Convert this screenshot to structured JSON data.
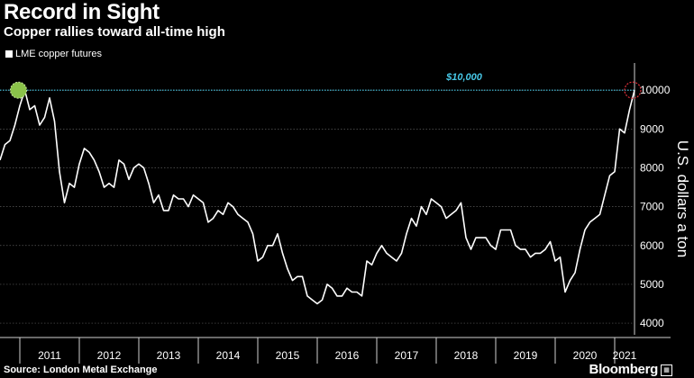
{
  "header": {
    "title": "Record in Sight",
    "subtitle": "Copper rallies toward all-time high"
  },
  "legend": {
    "label": "LME copper futures"
  },
  "footer": {
    "source": "Source: London Metal Exchange",
    "brand": "Bloomberg"
  },
  "colors": {
    "background": "#000000",
    "line": "#ffffff",
    "reference": "#47c7e6",
    "start_marker": "#8bc34a",
    "end_marker": "#e0303a",
    "grid": "#5a5a5a"
  },
  "chart_data": {
    "type": "line",
    "title": "Record in Sight",
    "subtitle": "Copper rallies toward all-time high",
    "xlabel": "",
    "ylabel": "U.S. dollars a ton",
    "ylim": [
      3700,
      10700
    ],
    "y_ticks": [
      4000,
      5000,
      6000,
      7000,
      8000,
      9000,
      10000
    ],
    "x_ticks": [
      "2011",
      "2012",
      "2013",
      "2014",
      "2015",
      "2016",
      "2017",
      "2018",
      "2019",
      "2020",
      "2021"
    ],
    "xlim": [
      "2010-09",
      "2021-05"
    ],
    "grid": "horizontal dotted",
    "legend_position": "top-left",
    "reference_line": {
      "value": 10000,
      "label": "$10,000"
    },
    "series": [
      {
        "name": "LME copper futures",
        "points": [
          [
            "2010-09",
            8200
          ],
          [
            "2010-10",
            8600
          ],
          [
            "2010-11",
            8700
          ],
          [
            "2010-12",
            9100
          ],
          [
            "2011-01",
            9600
          ],
          [
            "2011-02",
            10000
          ],
          [
            "2011-03",
            9500
          ],
          [
            "2011-04",
            9600
          ],
          [
            "2011-05",
            9100
          ],
          [
            "2011-06",
            9300
          ],
          [
            "2011-07",
            9800
          ],
          [
            "2011-08",
            9200
          ],
          [
            "2011-09",
            7900
          ],
          [
            "2011-10",
            7100
          ],
          [
            "2011-11",
            7600
          ],
          [
            "2011-12",
            7500
          ],
          [
            "2012-01",
            8100
          ],
          [
            "2012-02",
            8500
          ],
          [
            "2012-03",
            8400
          ],
          [
            "2012-04",
            8200
          ],
          [
            "2012-05",
            7900
          ],
          [
            "2012-06",
            7500
          ],
          [
            "2012-07",
            7600
          ],
          [
            "2012-08",
            7500
          ],
          [
            "2012-09",
            8200
          ],
          [
            "2012-10",
            8100
          ],
          [
            "2012-11",
            7700
          ],
          [
            "2012-12",
            8000
          ],
          [
            "2013-01",
            8100
          ],
          [
            "2013-02",
            8000
          ],
          [
            "2013-03",
            7600
          ],
          [
            "2013-04",
            7100
          ],
          [
            "2013-05",
            7300
          ],
          [
            "2013-06",
            6900
          ],
          [
            "2013-07",
            6900
          ],
          [
            "2013-08",
            7300
          ],
          [
            "2013-09",
            7200
          ],
          [
            "2013-10",
            7200
          ],
          [
            "2013-11",
            7000
          ],
          [
            "2013-12",
            7300
          ],
          [
            "2014-01",
            7200
          ],
          [
            "2014-02",
            7100
          ],
          [
            "2014-03",
            6600
          ],
          [
            "2014-04",
            6700
          ],
          [
            "2014-05",
            6900
          ],
          [
            "2014-06",
            6800
          ],
          [
            "2014-07",
            7100
          ],
          [
            "2014-08",
            7000
          ],
          [
            "2014-09",
            6800
          ],
          [
            "2014-10",
            6700
          ],
          [
            "2014-11",
            6600
          ],
          [
            "2014-12",
            6300
          ],
          [
            "2015-01",
            5600
          ],
          [
            "2015-02",
            5700
          ],
          [
            "2015-03",
            6000
          ],
          [
            "2015-04",
            6000
          ],
          [
            "2015-05",
            6300
          ],
          [
            "2015-06",
            5800
          ],
          [
            "2015-07",
            5400
          ],
          [
            "2015-08",
            5100
          ],
          [
            "2015-09",
            5200
          ],
          [
            "2015-10",
            5200
          ],
          [
            "2015-11",
            4700
          ],
          [
            "2015-12",
            4600
          ],
          [
            "2016-01",
            4500
          ],
          [
            "2016-02",
            4600
          ],
          [
            "2016-03",
            5000
          ],
          [
            "2016-04",
            4900
          ],
          [
            "2016-05",
            4700
          ],
          [
            "2016-06",
            4700
          ],
          [
            "2016-07",
            4900
          ],
          [
            "2016-08",
            4800
          ],
          [
            "2016-09",
            4800
          ],
          [
            "2016-10",
            4700
          ],
          [
            "2016-11",
            5600
          ],
          [
            "2016-12",
            5500
          ],
          [
            "2017-01",
            5800
          ],
          [
            "2017-02",
            6000
          ],
          [
            "2017-03",
            5800
          ],
          [
            "2017-04",
            5700
          ],
          [
            "2017-05",
            5600
          ],
          [
            "2017-06",
            5800
          ],
          [
            "2017-07",
            6300
          ],
          [
            "2017-08",
            6700
          ],
          [
            "2017-09",
            6500
          ],
          [
            "2017-10",
            7000
          ],
          [
            "2017-11",
            6800
          ],
          [
            "2017-12",
            7200
          ],
          [
            "2018-01",
            7100
          ],
          [
            "2018-02",
            7000
          ],
          [
            "2018-03",
            6700
          ],
          [
            "2018-04",
            6800
          ],
          [
            "2018-05",
            6900
          ],
          [
            "2018-06",
            7100
          ],
          [
            "2018-07",
            6200
          ],
          [
            "2018-08",
            5900
          ],
          [
            "2018-09",
            6200
          ],
          [
            "2018-10",
            6200
          ],
          [
            "2018-11",
            6200
          ],
          [
            "2018-12",
            6000
          ],
          [
            "2019-01",
            5900
          ],
          [
            "2019-02",
            6400
          ],
          [
            "2019-03",
            6400
          ],
          [
            "2019-04",
            6400
          ],
          [
            "2019-05",
            6000
          ],
          [
            "2019-06",
            5900
          ],
          [
            "2019-07",
            5900
          ],
          [
            "2019-08",
            5700
          ],
          [
            "2019-09",
            5800
          ],
          [
            "2019-10",
            5800
          ],
          [
            "2019-11",
            5900
          ],
          [
            "2019-12",
            6100
          ],
          [
            "2020-01",
            5600
          ],
          [
            "2020-02",
            5700
          ],
          [
            "2020-03",
            4800
          ],
          [
            "2020-04",
            5100
          ],
          [
            "2020-05",
            5300
          ],
          [
            "2020-06",
            5900
          ],
          [
            "2020-07",
            6400
          ],
          [
            "2020-08",
            6600
          ],
          [
            "2020-09",
            6700
          ],
          [
            "2020-10",
            6800
          ],
          [
            "2020-11",
            7300
          ],
          [
            "2020-12",
            7800
          ],
          [
            "2021-01",
            7900
          ],
          [
            "2021-02",
            9000
          ],
          [
            "2021-03",
            8900
          ],
          [
            "2021-04",
            9500
          ],
          [
            "2021-05",
            10000
          ]
        ]
      }
    ]
  }
}
